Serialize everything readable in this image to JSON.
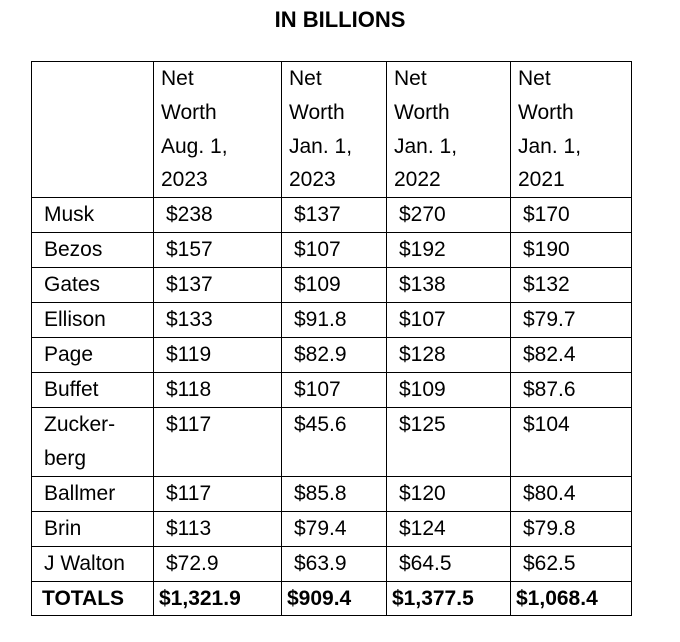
{
  "title": "IN BILLIONS",
  "header": {
    "corner": "",
    "columns": [
      [
        "Net",
        "Worth",
        "Aug. 1,",
        "2023"
      ],
      [
        "Net",
        "Worth",
        "Jan. 1,",
        "2023"
      ],
      [
        "Net",
        "Worth",
        "Jan. 1,",
        "2022"
      ],
      [
        "Net",
        "Worth",
        "Jan. 1,",
        "2021"
      ]
    ]
  },
  "rows": [
    {
      "name": [
        "Musk"
      ],
      "values": [
        "$238",
        "$137",
        "$270",
        "$170"
      ]
    },
    {
      "name": [
        "Bezos"
      ],
      "values": [
        "$157",
        "$107",
        "$192",
        "$190"
      ]
    },
    {
      "name": [
        "Gates"
      ],
      "values": [
        "$137",
        "$109",
        "$138",
        "$132"
      ]
    },
    {
      "name": [
        "Ellison"
      ],
      "values": [
        "$133",
        "$91.8",
        "$107",
        "$79.7"
      ]
    },
    {
      "name": [
        "Page"
      ],
      "values": [
        "$119",
        "$82.9",
        "$128",
        "$82.4"
      ]
    },
    {
      "name": [
        "Buffet"
      ],
      "values": [
        "$118",
        "$107",
        "$109",
        "$87.6"
      ]
    },
    {
      "name": [
        "Zucker-",
        "berg"
      ],
      "values": [
        "$117",
        "$45.6",
        "$125",
        "$104"
      ]
    },
    {
      "name": [
        "Ballmer"
      ],
      "values": [
        "$117",
        "$85.8",
        "$120",
        "$80.4"
      ]
    },
    {
      "name": [
        "Brin"
      ],
      "values": [
        "$113",
        "$79.4",
        "$124",
        "$79.8"
      ]
    },
    {
      "name": [
        "J Walton"
      ],
      "values": [
        "$72.9",
        "$63.9",
        "$64.5",
        "$62.5"
      ]
    }
  ],
  "totals": {
    "label": "TOTALS",
    "values": [
      "$1,321.9",
      "$909.4",
      "$1,377.5",
      "$1,068.4"
    ]
  }
}
